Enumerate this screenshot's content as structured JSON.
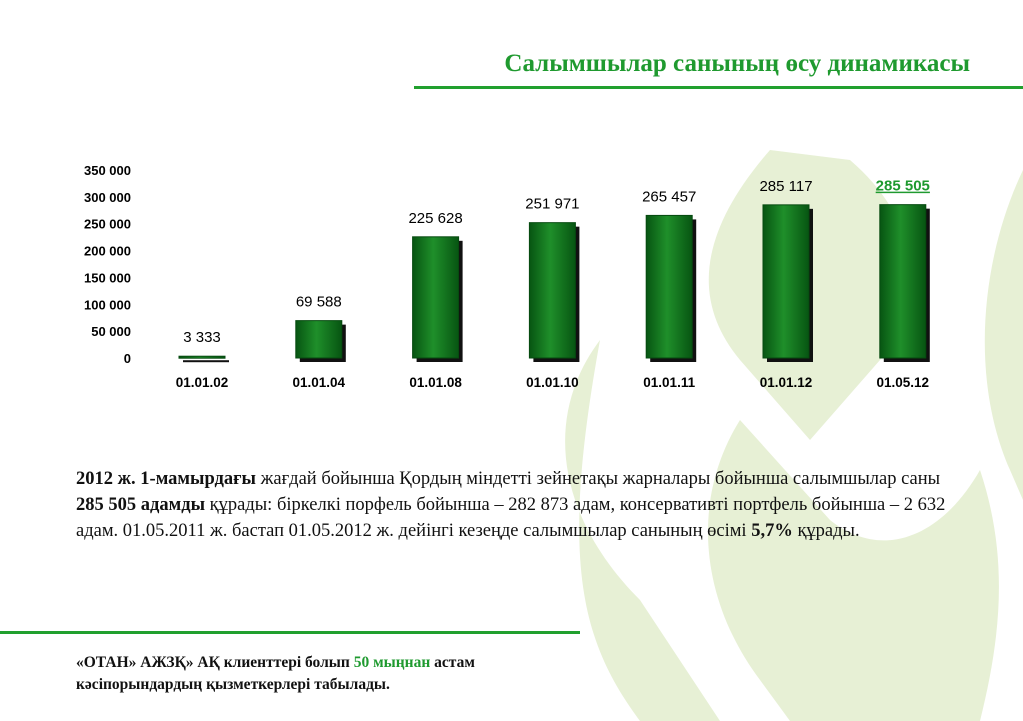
{
  "header": {
    "title": "Салымшылар санының өсу динамикасы"
  },
  "chart_data": {
    "type": "bar",
    "categories": [
      "01.01.02",
      "01.01.04",
      "01.01.08",
      "01.01.10",
      "01.01.11",
      "01.01.12",
      "01.05.12"
    ],
    "values": [
      3333,
      69588,
      225628,
      251971,
      265457,
      285117,
      285505
    ],
    "value_labels": [
      "3 333",
      "69 588",
      "225 628",
      "251 971",
      "265 457",
      "285 117",
      "285 505"
    ],
    "ylim": [
      0,
      350000
    ],
    "yticks": [
      0,
      50000,
      100000,
      150000,
      200000,
      250000,
      300000,
      350000
    ],
    "ytick_labels": [
      "0",
      "50 000",
      "100 000",
      "150 000",
      "200 000",
      "250 000",
      "300 000",
      "350 000"
    ],
    "highlight_index": 6,
    "title": "",
    "xlabel": "",
    "ylabel": "",
    "grid": false,
    "bar_color": "#0c7a1c",
    "highlight_color": "#1f9a2f"
  },
  "body": {
    "p1_bold": "2012 ж. 1-мамырдағы",
    "p2": " жағдай бойынша Қордың міндетті зейнетақы жарналары бойынша салымшылар саны ",
    "p3_bold": "285 505 адамды",
    "p4": " құрады: біркелкі порфель бойынша – 282 873 адам, консервативті портфель бойынша – 2 632 адам. 01.05.2011 ж. бастап 01.05.2012 ж. дейінгі кезеңде салымшылар санының өсімі ",
    "p5_bold": "5,7%",
    "p6": " құрады."
  },
  "footer": {
    "part1": "«ОТАН» АЖЗҚ» АҚ клиенттері болып ",
    "highlight": "50 мыңнан",
    "part2": " астам кәсіпорындардың қызметкерлері табылады."
  },
  "colors": {
    "accent": "#21a02e",
    "logo": "#e8f1d6"
  }
}
